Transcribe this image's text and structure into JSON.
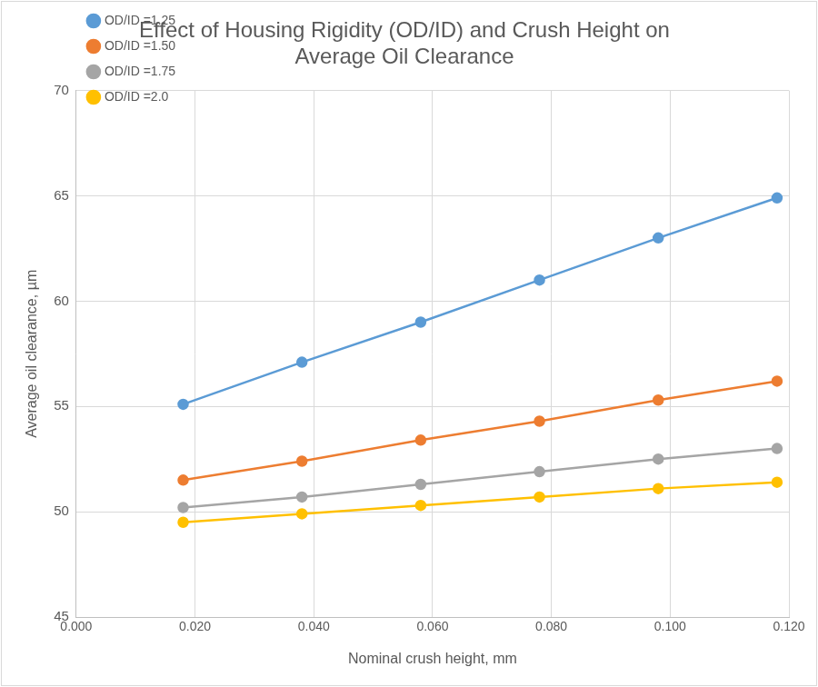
{
  "chart_data": {
    "type": "line",
    "title": [
      "Effect of Housing Rigidity (OD/ID) and Crush Height on",
      "Average Oil Clearance"
    ],
    "x_label": "Nominal crush height, mm",
    "y_label": "Average oil clearance, µm",
    "x": [
      0.018,
      0.038,
      0.058,
      0.078,
      0.098,
      0.118
    ],
    "series": [
      {
        "name": "OD/ID =1.25",
        "color": "#5b9bd5",
        "values": [
          55.1,
          57.1,
          59.0,
          61.0,
          63.0,
          64.9
        ]
      },
      {
        "name": "OD/ID =1.50",
        "color": "#ed7d31",
        "values": [
          51.5,
          52.4,
          53.4,
          54.3,
          55.3,
          56.2
        ]
      },
      {
        "name": "OD/ID =1.75",
        "color": "#a5a5a5",
        "values": [
          50.2,
          50.7,
          51.3,
          51.9,
          52.5,
          53.0
        ]
      },
      {
        "name": "OD/ID =2.0",
        "color": "#ffc000",
        "values": [
          49.5,
          49.9,
          50.3,
          50.7,
          51.1,
          51.4
        ]
      }
    ],
    "xlim": [
      0,
      0.12
    ],
    "xticks": [
      {
        "value": 0,
        "label": "0.000"
      },
      {
        "value": 0.02,
        "label": "0.020"
      },
      {
        "value": 0.04,
        "label": "0.040"
      },
      {
        "value": 0.06,
        "label": "0.060"
      },
      {
        "value": 0.08,
        "label": "0.080"
      },
      {
        "value": 0.1,
        "label": "0.100"
      },
      {
        "value": 0.12,
        "label": "0.120"
      }
    ],
    "ylim": [
      45,
      70
    ],
    "yticks": [
      45,
      50,
      55,
      60,
      65,
      70
    ],
    "grid": true,
    "legend": "top-left",
    "marker": "circle"
  }
}
